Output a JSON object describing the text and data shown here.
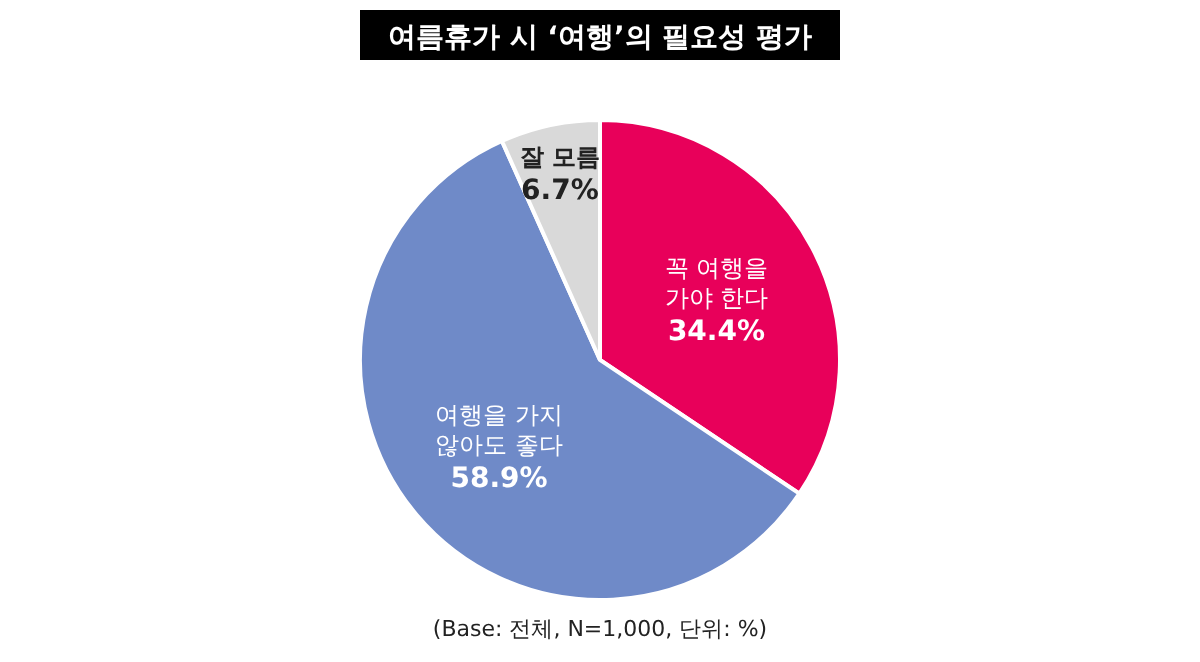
{
  "chart_data": {
    "type": "pie",
    "title": "여름휴가 시 ‘여행’의 필요성 평가",
    "categories": [
      "꼭 여행을\n가야 한다",
      "여행을 가지\n않아도 좋다",
      "잘 모름"
    ],
    "values": [
      34.4,
      58.9,
      6.7
    ],
    "value_labels": [
      "34.4%",
      "58.9%",
      "6.7%"
    ],
    "colors": [
      "#e8005a",
      "#6f8ac8",
      "#d9d9d9"
    ],
    "annotations": [
      "(Base: 전체, N=1,000, 단위: %)"
    ]
  }
}
